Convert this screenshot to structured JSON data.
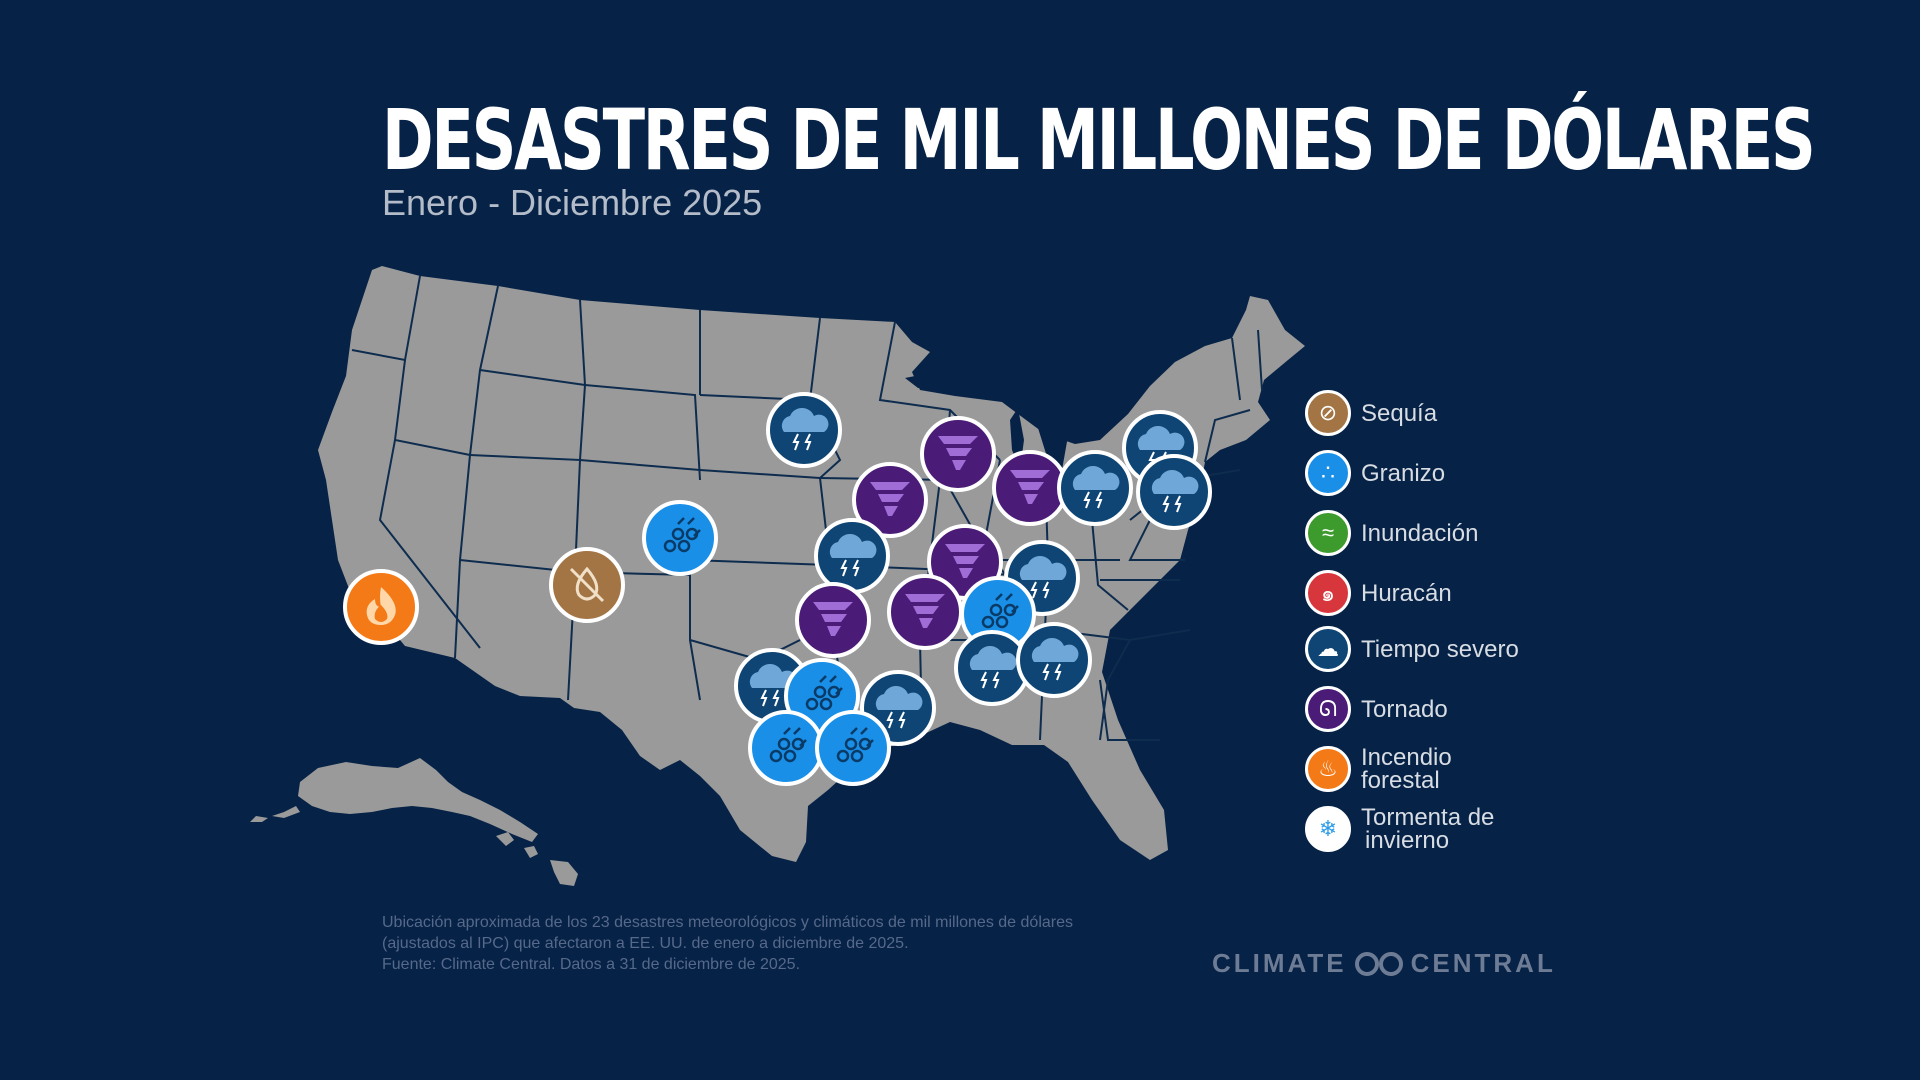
{
  "header": {
    "title": "DESASTRES DE MIL MILLONES DE DÓLARES",
    "subtitle": "Enero - Diciembre 2025"
  },
  "legend": [
    {
      "key": "drought",
      "line1": "Sequía",
      "line2": "",
      "color": "#a37444",
      "icon": "drought-icon"
    },
    {
      "key": "hail",
      "line1": "Granizo",
      "line2": "",
      "color": "#1a8fe8",
      "icon": "hail-icon"
    },
    {
      "key": "flood",
      "line1": "Inundación",
      "line2": "",
      "color": "#3d9a2c",
      "icon": "flood-icon"
    },
    {
      "key": "hurricane",
      "line1": "Huracán",
      "line2": "",
      "color": "#d8363d",
      "icon": "hurricane-icon"
    },
    {
      "key": "severe",
      "line1": "Tiempo severo",
      "line2": "",
      "color": "#0e4574",
      "icon": "severe-storm-icon"
    },
    {
      "key": "tornado",
      "line1": "Tornado",
      "line2": "",
      "color": "#4b1b78",
      "icon": "tornado-icon"
    },
    {
      "key": "wildfire",
      "line1": "Incendio",
      "line2": "forestal",
      "color": "#f47a17",
      "icon": "wildfire-icon"
    },
    {
      "key": "winter",
      "line1": "Tormenta de",
      "line2": "invierno",
      "color": "#ffffff",
      "icon": "winter-storm-icon"
    }
  ],
  "footnote": {
    "line1": "Ubicación aproximada de los 23 desastres meteorológicos y climáticos de mil millones de dólares",
    "line2": "(ajustados al IPC) que afectaron a EE. UU. de enero a diciembre de 2025.",
    "line3": "Fuente: Climate Central. Datos a 31 de diciembre de 2025."
  },
  "brand": {
    "left": "CLIMATE",
    "right": "CENTRAL"
  },
  "colors": {
    "background": "#062246",
    "land": "#9a9a9a",
    "border": "#0e2c4e"
  }
}
